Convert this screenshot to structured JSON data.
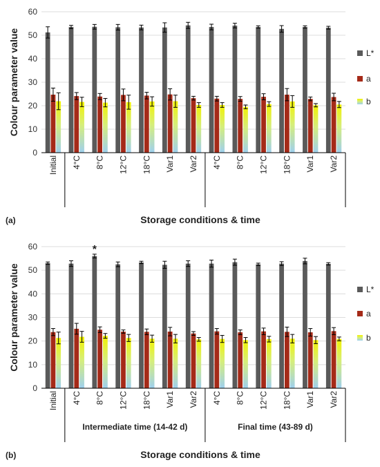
{
  "colors": {
    "L": "#5a5a5a",
    "a": "#a52a18",
    "b_top": "#f2f200",
    "b_bottom": "#9fd0ee",
    "grid": "#dcdcdc",
    "axis": "#000000"
  },
  "chart_data": [
    {
      "type": "bar",
      "panel_label": "(a)",
      "ylabel": "Colour parameter value",
      "xlabel": "Storage conditions & time",
      "ylim": [
        0,
        60
      ],
      "yticks": [
        0,
        10,
        20,
        30,
        40,
        50,
        60
      ],
      "grid": true,
      "legend_position": "right",
      "categories": [
        "Initial",
        "4°C",
        "8°C",
        "12°C",
        "18°C",
        "Var1",
        "Var2",
        "4°C",
        "8°C",
        "12°C",
        "18°C",
        "Var1",
        "Var2"
      ],
      "groups": [],
      "series": [
        {
          "name": "L*",
          "values": [
            51.2,
            53.5,
            53.6,
            53.4,
            53.3,
            53.3,
            54.2,
            53.5,
            54.1,
            53.5,
            52.7,
            53.5,
            53.2
          ],
          "errors": [
            2.4,
            0.7,
            1.0,
            1.2,
            1.0,
            2.0,
            1.3,
            1.2,
            1.0,
            0.5,
            1.4,
            0.5,
            0.6
          ]
        },
        {
          "name": "a",
          "values": [
            24.7,
            24.1,
            23.9,
            24.6,
            24.3,
            24.8,
            23.2,
            23.0,
            22.9,
            23.8,
            24.7,
            22.9,
            23.7
          ],
          "errors": [
            2.8,
            1.5,
            1.3,
            2.5,
            1.4,
            2.4,
            0.8,
            1.0,
            1.0,
            1.3,
            2.6,
            0.8,
            1.6
          ]
        },
        {
          "name": "b",
          "values": [
            21.9,
            21.6,
            21.3,
            21.5,
            21.8,
            21.9,
            20.3,
            20.3,
            19.5,
            20.7,
            21.8,
            20.2,
            20.5
          ],
          "errors": [
            3.6,
            2.0,
            1.8,
            3.0,
            2.0,
            2.6,
            1.0,
            1.0,
            0.8,
            1.0,
            2.5,
            0.7,
            1.3
          ]
        }
      ],
      "annotations": []
    },
    {
      "type": "bar",
      "panel_label": "(b)",
      "ylabel": "Colour parameter value",
      "xlabel": "Storage conditions & time",
      "ylim": [
        0,
        60
      ],
      "yticks": [
        0,
        10,
        20,
        30,
        40,
        50,
        60
      ],
      "grid": true,
      "legend_position": "right",
      "categories": [
        "Initial",
        "4°C",
        "8°C",
        "12°C",
        "18°C",
        "Var1",
        "Var2",
        "4°C",
        "8°C",
        "12°C",
        "18°C",
        "Var1",
        "Var2"
      ],
      "groups": [
        {
          "label": "Intermediate time (14-42 d)",
          "from": 1,
          "to": 6
        },
        {
          "label": "Final time (43-89 d)",
          "from": 7,
          "to": 12
        }
      ],
      "series": [
        {
          "name": "L*",
          "values": [
            53.0,
            52.8,
            56.0,
            52.5,
            53.3,
            52.3,
            52.8,
            52.8,
            53.4,
            52.5,
            52.8,
            53.9,
            52.7
          ],
          "errors": [
            0.5,
            1.2,
            0.8,
            1.0,
            0.5,
            1.5,
            1.2,
            1.5,
            1.3,
            0.5,
            0.8,
            1.2,
            0.5
          ]
        },
        {
          "name": "a",
          "values": [
            23.8,
            25.2,
            24.8,
            24.0,
            23.9,
            24.0,
            23.2,
            24.1,
            23.7,
            24.1,
            23.9,
            23.7,
            24.2
          ],
          "errors": [
            1.5,
            2.3,
            1.2,
            0.7,
            1.2,
            1.8,
            0.8,
            1.2,
            1.0,
            1.4,
            2.0,
            1.6,
            1.5
          ]
        },
        {
          "name": "b",
          "values": [
            21.3,
            21.8,
            22.2,
            21.3,
            21.0,
            21.0,
            20.7,
            20.9,
            20.4,
            20.8,
            21.0,
            20.4,
            20.9
          ],
          "errors": [
            2.5,
            2.3,
            1.0,
            1.5,
            1.5,
            1.8,
            0.8,
            1.5,
            1.1,
            1.2,
            1.8,
            1.5,
            0.8
          ]
        }
      ],
      "annotations": [
        {
          "text": "*",
          "category_index": 2,
          "series": "L*"
        }
      ]
    }
  ]
}
